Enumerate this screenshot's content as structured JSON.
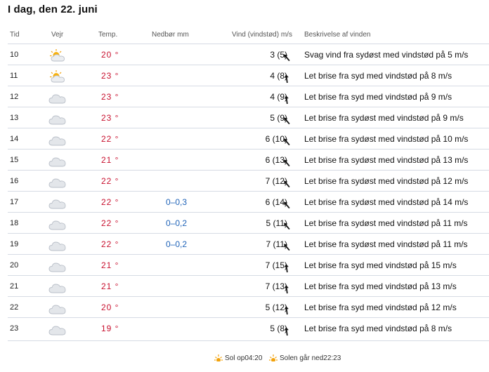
{
  "page_title": "I dag, den 22. juni",
  "columns": {
    "time": "Tid",
    "weather": "Vejr",
    "temp": "Temp.",
    "rain": "Nedbør mm",
    "wind": "Vind (vindstød) m/s",
    "description": "Beskrivelse af vinden"
  },
  "rows": [
    {
      "time": "10",
      "icon": "sun-cloud-icon",
      "temp": "20 °",
      "rain": "",
      "wind": "3 (5)",
      "dir": "sydøst",
      "desc": "Svag vind fra sydøst med vindstød på 5 m/s"
    },
    {
      "time": "11",
      "icon": "sun-cloud-icon",
      "temp": "23 °",
      "rain": "",
      "wind": "4 (8)",
      "dir": "syd",
      "desc": "Let brise fra syd med vindstød på 8 m/s"
    },
    {
      "time": "12",
      "icon": "cloud-icon",
      "temp": "23 °",
      "rain": "",
      "wind": "4 (9)",
      "dir": "syd",
      "desc": "Let brise fra syd med vindstød på 9 m/s"
    },
    {
      "time": "13",
      "icon": "cloud-icon",
      "temp": "23 °",
      "rain": "",
      "wind": "5 (9)",
      "dir": "sydøst",
      "desc": "Let brise fra sydøst med vindstød på 9 m/s"
    },
    {
      "time": "14",
      "icon": "cloud-icon",
      "temp": "22 °",
      "rain": "",
      "wind": "6 (10)",
      "dir": "sydøst",
      "desc": "Let brise fra sydøst med vindstød på 10 m/s"
    },
    {
      "time": "15",
      "icon": "cloud-icon",
      "temp": "21 °",
      "rain": "",
      "wind": "6 (13)",
      "dir": "sydøst",
      "desc": "Let brise fra sydøst med vindstød på 13 m/s"
    },
    {
      "time": "16",
      "icon": "cloud-icon",
      "temp": "22 °",
      "rain": "",
      "wind": "7 (12)",
      "dir": "sydøst",
      "desc": "Let brise fra sydøst med vindstød på 12 m/s"
    },
    {
      "time": "17",
      "icon": "cloud-icon",
      "temp": "22 °",
      "rain": "0–0,3",
      "wind": "6 (14)",
      "dir": "sydøst",
      "desc": "Let brise fra sydøst med vindstød på 14 m/s"
    },
    {
      "time": "18",
      "icon": "cloud-icon",
      "temp": "22 °",
      "rain": "0–0,2",
      "wind": "5 (11)",
      "dir": "sydøst",
      "desc": "Let brise fra sydøst med vindstød på 11 m/s"
    },
    {
      "time": "19",
      "icon": "cloud-icon",
      "temp": "22 °",
      "rain": "0–0,2",
      "wind": "7 (11)",
      "dir": "sydøst",
      "desc": "Let brise fra sydøst med vindstød på 11 m/s"
    },
    {
      "time": "20",
      "icon": "cloud-icon",
      "temp": "21 °",
      "rain": "",
      "wind": "7 (15)",
      "dir": "syd",
      "desc": "Let brise fra syd med vindstød på 15 m/s"
    },
    {
      "time": "21",
      "icon": "cloud-icon",
      "temp": "21 °",
      "rain": "",
      "wind": "7 (13)",
      "dir": "syd",
      "desc": "Let brise fra syd med vindstød på 13 m/s"
    },
    {
      "time": "22",
      "icon": "cloud-icon",
      "temp": "20 °",
      "rain": "",
      "wind": "5 (12)",
      "dir": "syd",
      "desc": "Let brise fra syd med vindstød på 12 m/s"
    },
    {
      "time": "23",
      "icon": "cloud-icon",
      "temp": "19 °",
      "rain": "",
      "wind": "5 (8)",
      "dir": "syd",
      "desc": "Let brise fra syd med vindstød på 8 m/s"
    }
  ],
  "sun": {
    "sunrise": "Sol op04:20",
    "sunset": "Solen går ned22:23"
  },
  "colors": {
    "temp": "#c8102e",
    "rain": "#1f63b8",
    "divider": "#d6dbe4"
  }
}
